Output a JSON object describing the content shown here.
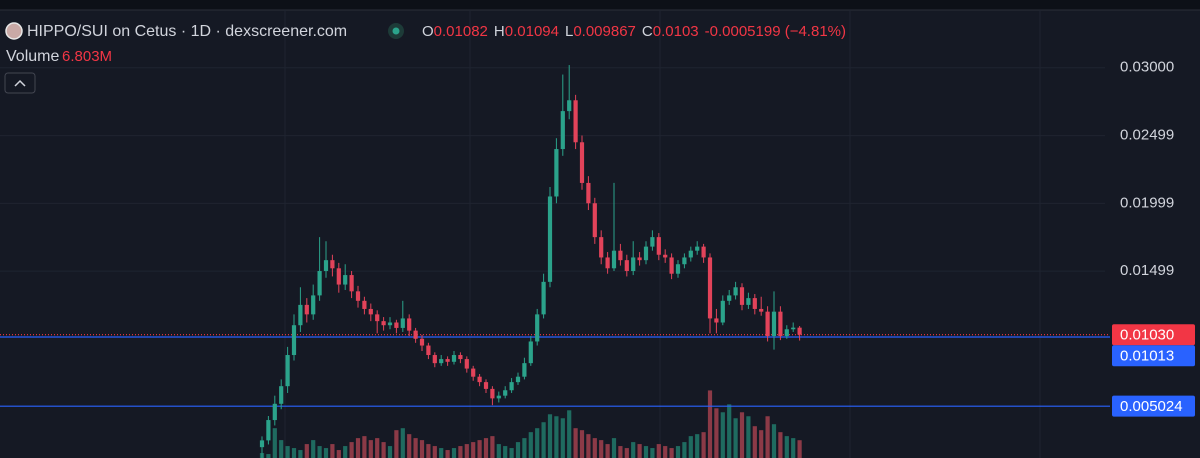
{
  "header": {
    "title": "HIPPO/SUI on Cetus · 1D · dexscreener.com",
    "ohlc": [
      {
        "key": "O",
        "value": 0.01082
      },
      {
        "key": "H",
        "value": 0.01094
      },
      {
        "key": "L",
        "value": 0.009867
      },
      {
        "key": "C",
        "value": 0.0103
      }
    ],
    "change": "-0.0005199 (−4.81%)",
    "volume_label": "Volume",
    "volume_value": 6803000,
    "volume_value_label": "6.803M"
  },
  "chart_data": {
    "type": "candlestick",
    "up_color": "#2ba38b",
    "down_color": "#e2435a",
    "volume_up_color": "#1f6b60",
    "volume_down_color": "#8c3a47",
    "open": [
      0.002,
      0.0025,
      0.004,
      0.0052,
      0.0065,
      0.0088,
      0.011,
      0.0125,
      0.0118,
      0.0132,
      0.015,
      0.0158,
      0.0152,
      0.014,
      0.0147,
      0.0135,
      0.0128,
      0.0122,
      0.0118,
      0.0113,
      0.011,
      0.0112,
      0.0108,
      0.0115,
      0.0106,
      0.01,
      0.0095,
      0.0088,
      0.0082,
      0.0085,
      0.0083,
      0.0088,
      0.0085,
      0.0078,
      0.0072,
      0.0068,
      0.0063,
      0.0056,
      0.0058,
      0.0062,
      0.0068,
      0.0072,
      0.0082,
      0.0098,
      0.0118,
      0.0142,
      0.0205,
      0.024,
      0.0268,
      0.0276,
      0.0245,
      0.0215,
      0.02,
      0.0175,
      0.016,
      0.0152,
      0.0165,
      0.0158,
      0.015,
      0.016,
      0.0158,
      0.0168,
      0.0175,
      0.0162,
      0.016,
      0.0148,
      0.0155,
      0.016,
      0.0165,
      0.0168,
      0.016,
      0.0115,
      0.0112,
      0.0128,
      0.0132,
      0.0138,
      0.0125,
      0.013,
      0.0122,
      0.012,
      0.0102,
      0.012,
      0.0102,
      0.0107,
      0.01082
    ],
    "high": [
      0.0028,
      0.0043,
      0.0058,
      0.007,
      0.0094,
      0.0118,
      0.0138,
      0.013,
      0.014,
      0.0175,
      0.0172,
      0.0162,
      0.0156,
      0.0155,
      0.015,
      0.0139,
      0.0131,
      0.0126,
      0.0121,
      0.0116,
      0.0116,
      0.0114,
      0.0128,
      0.0118,
      0.0108,
      0.0103,
      0.0097,
      0.009,
      0.0088,
      0.0087,
      0.0091,
      0.009,
      0.0087,
      0.008,
      0.0074,
      0.007,
      0.0065,
      0.0061,
      0.0065,
      0.0071,
      0.0075,
      0.0086,
      0.0102,
      0.0122,
      0.0148,
      0.0212,
      0.0248,
      0.0295,
      0.0302,
      0.028,
      0.025,
      0.022,
      0.0204,
      0.018,
      0.0164,
      0.0215,
      0.017,
      0.0162,
      0.0172,
      0.0164,
      0.0172,
      0.018,
      0.0178,
      0.0166,
      0.0163,
      0.0158,
      0.0163,
      0.0168,
      0.0172,
      0.017,
      0.0163,
      0.0122,
      0.0132,
      0.0136,
      0.0142,
      0.0141,
      0.0134,
      0.0133,
      0.0131,
      0.0124,
      0.0135,
      0.0124,
      0.011,
      0.0112,
      0.01094
    ],
    "low": [
      0.0012,
      0.0022,
      0.0036,
      0.0048,
      0.006,
      0.0084,
      0.0105,
      0.0112,
      0.0114,
      0.0128,
      0.0145,
      0.0146,
      0.0134,
      0.0136,
      0.013,
      0.0123,
      0.0118,
      0.0113,
      0.0104,
      0.0106,
      0.0107,
      0.0104,
      0.0105,
      0.0102,
      0.0097,
      0.0091,
      0.0085,
      0.0079,
      0.008,
      0.008,
      0.0081,
      0.0082,
      0.0075,
      0.0069,
      0.0065,
      0.006,
      0.0051,
      0.0053,
      0.0056,
      0.006,
      0.0066,
      0.007,
      0.008,
      0.0095,
      0.0115,
      0.0138,
      0.02,
      0.0235,
      0.0262,
      0.024,
      0.021,
      0.0195,
      0.017,
      0.0155,
      0.0148,
      0.015,
      0.0154,
      0.0146,
      0.0147,
      0.0154,
      0.0155,
      0.0165,
      0.0158,
      0.0156,
      0.0144,
      0.0145,
      0.0152,
      0.0157,
      0.0162,
      0.0156,
      0.0104,
      0.0104,
      0.011,
      0.0125,
      0.0129,
      0.0121,
      0.0122,
      0.0118,
      0.0117,
      0.0098,
      0.0092,
      0.0099,
      0.01,
      0.0105,
      0.009867
    ],
    "close": [
      0.0025,
      0.004,
      0.0052,
      0.0065,
      0.0088,
      0.011,
      0.0125,
      0.0118,
      0.0132,
      0.015,
      0.0158,
      0.0152,
      0.014,
      0.0147,
      0.0135,
      0.0128,
      0.0122,
      0.0118,
      0.0113,
      0.011,
      0.0112,
      0.0108,
      0.0115,
      0.0106,
      0.01,
      0.0095,
      0.0088,
      0.0082,
      0.0085,
      0.0083,
      0.0088,
      0.0085,
      0.0078,
      0.0072,
      0.0068,
      0.0063,
      0.0056,
      0.0058,
      0.0062,
      0.0068,
      0.0072,
      0.0082,
      0.0098,
      0.0118,
      0.0142,
      0.0205,
      0.024,
      0.0268,
      0.0276,
      0.0245,
      0.0215,
      0.02,
      0.0175,
      0.016,
      0.0152,
      0.0165,
      0.0158,
      0.015,
      0.016,
      0.0158,
      0.0168,
      0.0175,
      0.0162,
      0.016,
      0.0148,
      0.0155,
      0.016,
      0.0165,
      0.0168,
      0.016,
      0.0115,
      0.0112,
      0.0128,
      0.0132,
      0.0138,
      0.0125,
      0.013,
      0.0122,
      0.012,
      0.0102,
      0.012,
      0.0102,
      0.0107,
      0.01082,
      0.0103
    ],
    "volume": [
      1900000,
      1520000,
      11400000,
      6840000,
      4560000,
      3800000,
      3040000,
      5320000,
      6840000,
      4560000,
      3800000,
      5320000,
      3040000,
      4560000,
      6080000,
      7600000,
      8360000,
      6840000,
      7600000,
      6080000,
      4560000,
      10640000,
      11400000,
      9120000,
      7600000,
      6840000,
      5320000,
      4560000,
      3800000,
      3040000,
      3800000,
      4560000,
      5320000,
      6080000,
      6840000,
      7600000,
      8360000,
      5320000,
      4560000,
      3800000,
      6080000,
      7600000,
      9880000,
      11400000,
      13680000,
      16720000,
      15960000,
      15200000,
      18240000,
      11400000,
      10640000,
      9120000,
      7600000,
      6840000,
      5320000,
      7600000,
      4560000,
      3800000,
      6080000,
      5320000,
      4560000,
      3800000,
      5320000,
      4560000,
      3800000,
      4560000,
      6080000,
      8360000,
      9120000,
      9880000,
      25840000,
      19000000,
      17480000,
      20520000,
      15200000,
      17480000,
      15960000,
      12160000,
      10640000,
      15960000,
      12920000,
      9880000,
      8360000,
      7600000,
      6803000
    ],
    "ylim": [
      0.0012,
      0.035
    ],
    "yticks": [
      {
        "value": 0.03,
        "label": "0.03000"
      },
      0.02499,
      0.01999,
      0.01499
    ],
    "vlim": [
      0,
      26000000
    ],
    "grid": true,
    "price_lines": [
      {
        "value": 0.0103,
        "label": "0.01030",
        "color": "#f23645",
        "style": "dotted"
      },
      {
        "value": 0.01013,
        "label": "0.01013",
        "color": "#2962ff",
        "style": "solid"
      },
      {
        "value": 0.005024,
        "label": "0.005024",
        "color": "#2962ff",
        "style": "solid"
      }
    ]
  }
}
